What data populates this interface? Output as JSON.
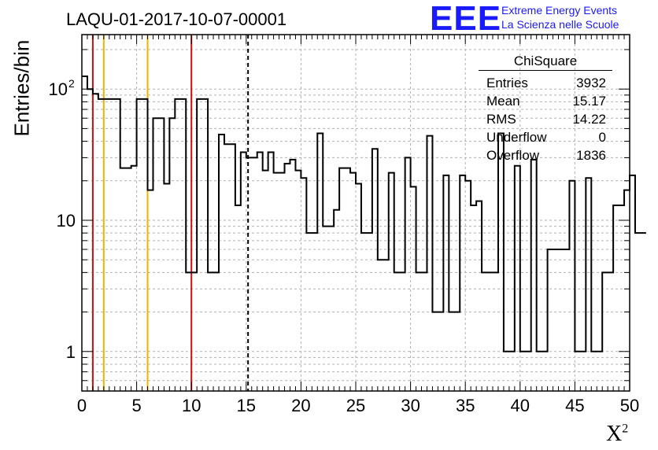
{
  "title": "LAQU-01-2017-10-07-00001",
  "logo": {
    "letters": "EEE",
    "line1": "Extreme Energy Events",
    "line2": "La Scienza nelle Scuole",
    "color": "#1a1aff"
  },
  "stats": {
    "name": "ChiSquare",
    "rows": [
      {
        "label": "Entries",
        "value": "3932"
      },
      {
        "label": "Mean",
        "value": "15.17"
      },
      {
        "label": "RMS",
        "value": "14.22"
      },
      {
        "label": "Underflow",
        "value": "0"
      },
      {
        "label": "Overflow",
        "value": "1836"
      }
    ]
  },
  "chart_data": {
    "type": "bar",
    "style": "step-histogram",
    "title": "LAQU-01-2017-10-07-00001",
    "xlabel": "X",
    "xlabel_superscript": "2",
    "ylabel": "Entries/bin",
    "xlim": [
      0,
      50
    ],
    "ylim": [
      0.5,
      260
    ],
    "yscale": "log",
    "grid": true,
    "bin_width": 0.5,
    "x_ticks": [
      "0",
      "5",
      "10",
      "15",
      "20",
      "25",
      "30",
      "35",
      "40",
      "45",
      "50"
    ],
    "y_ticks": [
      {
        "value": 1,
        "label": "1"
      },
      {
        "value": 10,
        "label": "10"
      },
      {
        "value": 100,
        "label": "10",
        "exponent": "2"
      }
    ],
    "values": [
      125,
      100,
      92,
      84,
      84,
      84,
      84,
      25,
      25,
      26,
      84,
      84,
      17,
      60,
      60,
      19,
      60,
      84,
      84,
      4,
      4,
      84,
      84,
      4,
      4,
      45,
      38,
      38,
      13,
      33,
      30,
      30,
      33,
      24,
      33,
      23,
      23,
      27,
      29,
      24,
      21,
      8,
      8,
      46,
      9,
      9,
      12,
      25,
      25,
      23,
      19,
      8,
      8,
      35,
      5,
      5,
      23,
      4,
      4,
      30,
      18,
      4,
      4,
      44,
      2,
      2,
      22,
      2,
      2,
      22,
      20,
      13,
      14,
      4,
      4,
      4,
      46,
      1,
      1,
      26,
      1,
      1,
      29,
      1,
      1,
      6,
      6,
      6,
      6,
      20,
      1,
      1,
      21,
      1,
      1,
      4,
      4,
      13,
      13,
      17,
      22,
      8,
      8
    ],
    "markers": [
      {
        "x": 1,
        "color": "#cc1111",
        "style": "solid"
      },
      {
        "x": 2,
        "color": "#f0b400",
        "style": "solid"
      },
      {
        "x": 6,
        "color": "#f0b400",
        "style": "solid"
      },
      {
        "x": 10,
        "color": "#cc1111",
        "style": "solid"
      },
      {
        "x": 15.17,
        "color": "#000000",
        "style": "dashed"
      }
    ]
  }
}
